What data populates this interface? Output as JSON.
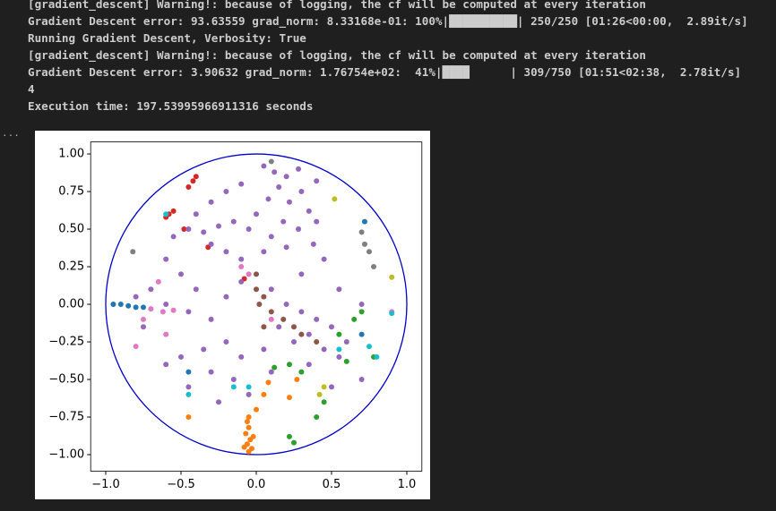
{
  "console": {
    "lines": [
      "[gradient_descent] Warning!: because of logging, the cf will be computed at every iteration",
      "Gradient Descent error: 93.63559 grad_norm: 8.33168e-01: 100%|██████████| 250/250 [01:26<00:00,  2.89it/s]",
      "Running Gradient Descent, Verbosity: True",
      "[gradient_descent] Warning!: because of logging, the cf will be computed at every iteration",
      "Gradient Descent error: 3.90632 grad_norm: 1.76754e+02:  41%|████      | 309/750 [01:51<02:38,  2.78it/s]",
      "4",
      "Execution time: 197.53995966911316 seconds"
    ],
    "prompt": "..."
  },
  "chart_data": {
    "type": "scatter",
    "xlim": [
      -1.1,
      1.1
    ],
    "ylim": [
      -1.11,
      1.08
    ],
    "xticks": [
      {
        "value": -1,
        "label": "−1.0"
      },
      {
        "value": -0.5,
        "label": "−0.5"
      },
      {
        "value": 0,
        "label": "0.0"
      },
      0.5,
      {
        "value": 1,
        "label": "1.0"
      }
    ],
    "yticks": [
      {
        "value": 1,
        "label": "1.00"
      },
      0.75,
      {
        "value": 0.5,
        "label": "0.50"
      },
      0.25,
      {
        "value": 0,
        "label": "0.00"
      },
      {
        "value": -0.25,
        "label": "−0.25"
      },
      {
        "value": -0.5,
        "label": "−0.50"
      },
      {
        "value": -0.75,
        "label": "−0.75"
      },
      {
        "value": -1,
        "label": "−1.00"
      }
    ],
    "circle": {
      "center": [
        0,
        0
      ],
      "radius": 1,
      "color": "#0000cc"
    },
    "series": [
      {
        "color": "#1f77b4",
        "x": [
          -0.95,
          -0.9,
          -0.85,
          -0.8,
          -0.75,
          0.72,
          0.7,
          -0.45
        ],
        "y": [
          0,
          0,
          -0.01,
          -0.02,
          -0.02,
          0.55,
          -0.2,
          -0.45
        ]
      },
      {
        "color": "#ff7f0e",
        "x": [
          -0.06,
          -0.05,
          -0.07,
          -0.04,
          -0.06,
          -0.03,
          -0.05,
          -0.08,
          -0.02,
          0.05,
          0.08,
          0,
          0.22,
          0.27,
          -0.45,
          -0.05
        ],
        "y": [
          -0.78,
          -0.82,
          -0.86,
          -0.9,
          -0.93,
          -0.96,
          -0.98,
          -0.95,
          -0.88,
          -0.6,
          -0.52,
          -0.7,
          -0.62,
          -0.5,
          -0.75,
          -0.75
        ]
      },
      {
        "color": "#2ca02c",
        "x": [
          0.65,
          0.7,
          0.55,
          0.3,
          0.22,
          0.12,
          0.22,
          0.25,
          0.4,
          0.45,
          0.78,
          0.6
        ],
        "y": [
          -0.1,
          -0.05,
          -0.2,
          -0.45,
          -0.4,
          -0.42,
          -0.88,
          -0.92,
          -0.75,
          -0.65,
          -0.35,
          -0.38
        ]
      },
      {
        "color": "#d62728",
        "x": [
          -0.45,
          -0.42,
          -0.4,
          -0.58,
          -0.6,
          -0.55,
          -0.48,
          -0.08,
          -0.32
        ],
        "y": [
          0.78,
          0.82,
          0.85,
          0.6,
          0.58,
          0.62,
          0.5,
          0.17,
          0.38
        ]
      },
      {
        "color": "#9467bd",
        "x": [
          0.05,
          0.12,
          0.2,
          0.28,
          0.15,
          0.3,
          0.08,
          0.22,
          0.35,
          0,
          0.18,
          0.28,
          0.1,
          -0.05,
          -0.15,
          -0.25,
          -0.35,
          -0.45,
          -0.55,
          -0.3,
          -0.2,
          -0.1,
          0.05,
          0.2,
          0.38,
          0.45,
          -0.4,
          -0.3,
          -0.2,
          -0.1,
          0.4,
          0.4,
          -0.6,
          -0.5,
          -0.4,
          -0.7,
          -0.6,
          -0.45,
          -0.3,
          -0.2,
          -0.1,
          0.1,
          0.2,
          0.3,
          0.4,
          0.5,
          0.35,
          0.25,
          0.45,
          0.55,
          0.15,
          0.05,
          -0.1,
          -0.2,
          -0.35,
          -0.5,
          -0.6,
          -0.45,
          -0.3,
          -0.15,
          -0.05,
          0.1,
          0.35,
          0.6,
          0.7,
          0.55,
          0.3,
          -0.8,
          -0.75,
          -0.25,
          0.7,
          0.5
        ],
        "y": [
          0.92,
          0.88,
          0.85,
          0.9,
          0.78,
          0.75,
          0.7,
          0.68,
          0.62,
          0.6,
          0.55,
          0.5,
          0.45,
          0.5,
          0.55,
          0.52,
          0.48,
          0.5,
          0.45,
          0.4,
          0.35,
          0.3,
          0.35,
          0.38,
          0.4,
          0.3,
          0.6,
          0.68,
          0.75,
          0.8,
          0.82,
          0.55,
          0.3,
          0.2,
          0.1,
          0.1,
          0,
          -0.05,
          -0.1,
          0.05,
          0.15,
          0.1,
          0,
          -0.05,
          -0.1,
          -0.15,
          -0.2,
          -0.25,
          -0.3,
          -0.35,
          -0.15,
          -0.3,
          -0.35,
          -0.25,
          -0.3,
          -0.35,
          -0.4,
          -0.55,
          -0.45,
          -0.5,
          -0.6,
          -0.45,
          -0.4,
          -0.25,
          0,
          0.1,
          0.2,
          0.05,
          -0.15,
          -0.65,
          -0.5,
          -0.55
        ]
      },
      {
        "color": "#8c564b",
        "x": [
          0,
          0.05,
          0.02,
          0.1,
          0.18,
          0.25,
          0.3,
          0.4,
          0,
          0.05
        ],
        "y": [
          0.1,
          0.05,
          0,
          -0.05,
          -0.1,
          -0.15,
          -0.2,
          -0.25,
          0.2,
          -0.15
        ]
      },
      {
        "color": "#e377c2",
        "x": [
          -0.7,
          -0.62,
          -0.55,
          -0.75,
          -0.1,
          -0.05,
          -0.6,
          -0.8,
          0.9,
          0.1,
          -0.65
        ],
        "y": [
          -0.03,
          -0.05,
          -0.04,
          -0.1,
          0.25,
          0.2,
          -0.2,
          -0.28,
          -0.05,
          -0.1,
          0.15
        ]
      },
      {
        "color": "#7f7f7f",
        "x": [
          0.72,
          0.75,
          0.7,
          0.78,
          0.1,
          -0.82
        ],
        "y": [
          0.4,
          0.35,
          0.48,
          0.25,
          0.95,
          0.35
        ]
      },
      {
        "color": "#bcbd22",
        "x": [
          0.52,
          0.9,
          0.45,
          0.42
        ],
        "y": [
          0.7,
          0.18,
          -0.55,
          -0.6
        ]
      },
      {
        "color": "#17becf",
        "x": [
          0.9,
          0.75,
          0.8,
          -0.45,
          -0.15,
          -0.05,
          -0.6,
          0.55
        ],
        "y": [
          -0.06,
          -0.28,
          -0.35,
          -0.6,
          -0.55,
          -0.55,
          0.6,
          -0.3
        ]
      }
    ]
  }
}
